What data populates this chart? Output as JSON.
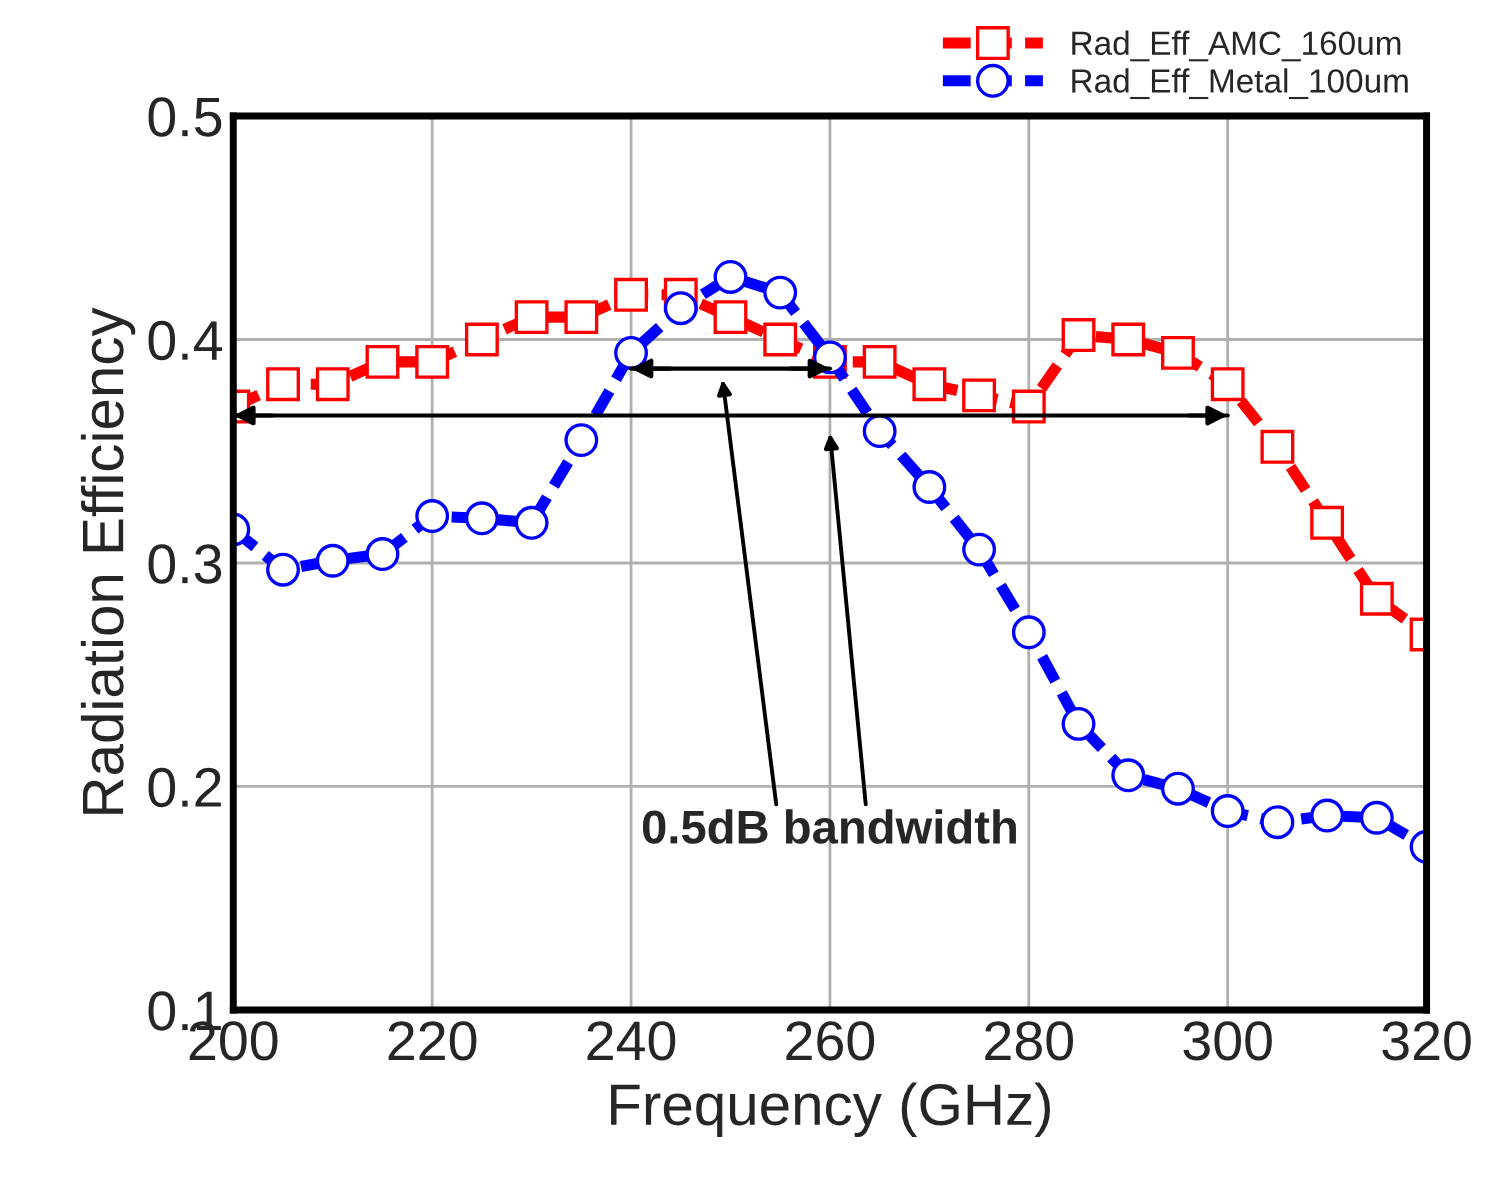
{
  "chart_data": {
    "type": "line",
    "xlabel": "Frequency (GHz)",
    "ylabel": "Radiation Efficiency",
    "x": [
      200,
      205,
      210,
      215,
      220,
      225,
      230,
      235,
      240,
      245,
      250,
      255,
      260,
      265,
      270,
      275,
      280,
      285,
      290,
      295,
      300,
      305,
      310,
      315,
      320
    ],
    "series": [
      {
        "name": "Rad_Eff_AMC_160um",
        "color": "#ff0000",
        "marker": "square",
        "values": [
          0.37,
          0.38,
          0.38,
          0.39,
          0.39,
          0.4,
          0.41,
          0.41,
          0.42,
          0.42,
          0.41,
          0.4,
          0.39,
          0.39,
          0.38,
          0.375,
          0.37,
          0.402,
          0.4,
          0.394,
          0.38,
          0.352,
          0.318,
          0.284,
          0.268
        ]
      },
      {
        "name": "Rad_Eff_Metal_100um",
        "color": "#0000ff",
        "marker": "circle",
        "values": [
          0.315,
          0.297,
          0.301,
          0.304,
          0.321,
          0.32,
          0.318,
          0.355,
          0.394,
          0.414,
          0.428,
          0.421,
          0.392,
          0.359,
          0.334,
          0.306,
          0.269,
          0.228,
          0.205,
          0.199,
          0.189,
          0.184,
          0.187,
          0.186,
          0.173
        ]
      },
      {
        "color": "#000000",
        "marker": "none",
        "line_style": "solid",
        "x": [
          240,
          260
        ],
        "values": [
          0.387,
          0.387
        ]
      },
      {
        "color": "#000000",
        "marker": "none",
        "line_style": "solid",
        "x": [
          200,
          300
        ],
        "values": [
          0.366,
          0.366
        ]
      }
    ],
    "line_style": "dashed",
    "xlim": [
      200,
      320
    ],
    "xticks": [
      200,
      220,
      240,
      260,
      280,
      300,
      320
    ],
    "ylim": [
      0.1,
      0.5
    ],
    "yticks": [
      0.1,
      0.2,
      0.3,
      0.4,
      0.5
    ],
    "grid": true,
    "legend": "top right",
    "annotations": [
      "0.5dB bandwidth"
    ]
  }
}
